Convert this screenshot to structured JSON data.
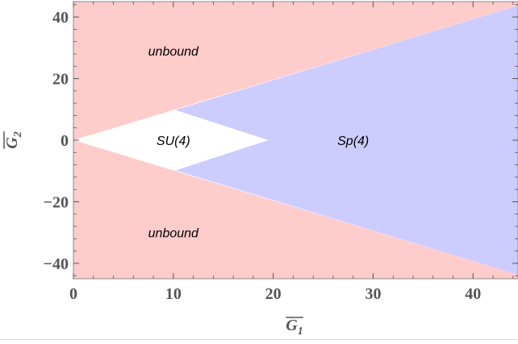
{
  "chart_data": {
    "type": "area",
    "title": "",
    "xlabel": {
      "base": "G",
      "sub": "1",
      "overline": true
    },
    "ylabel": {
      "base": "G",
      "sub": "2",
      "overline": true
    },
    "xlim": [
      0,
      44.5
    ],
    "ylim": [
      -45,
      45
    ],
    "x_ticks": [
      0,
      10,
      20,
      30,
      40
    ],
    "y_ticks": [
      -40,
      -20,
      0,
      20,
      40
    ],
    "x_tick_labels": [
      "0",
      "10",
      "20",
      "30",
      "40"
    ],
    "y_tick_labels": [
      "−40",
      "−20",
      "0",
      "20",
      "40"
    ],
    "grid": false,
    "regions": [
      {
        "key": "unbound-upper",
        "color": "#ffcccc",
        "polygon": [
          [
            0,
            0
          ],
          [
            0,
            45
          ],
          [
            44.5,
            45
          ],
          [
            44.5,
            43.7
          ]
        ]
      },
      {
        "key": "unbound-lower",
        "color": "#ffcccc",
        "polygon": [
          [
            0,
            0
          ],
          [
            44.5,
            -43.7
          ],
          [
            44.5,
            -45
          ],
          [
            0,
            -45
          ]
        ]
      },
      {
        "key": "sp4",
        "color": "#ccccff",
        "polygon": [
          [
            10.2,
            9.8
          ],
          [
            44.5,
            43.7
          ],
          [
            44.5,
            -43.7
          ],
          [
            10.2,
            -9.8
          ],
          [
            19.5,
            0
          ]
        ]
      },
      {
        "key": "su4",
        "color": "#ffffff",
        "polygon": [
          [
            0,
            0
          ],
          [
            10.2,
            9.8
          ],
          [
            19.5,
            0
          ],
          [
            10.2,
            -9.8
          ]
        ]
      }
    ],
    "labels": [
      {
        "key": "unbound-upper",
        "text": "unbound",
        "x": 10,
        "y": 29,
        "italic": true
      },
      {
        "key": "su4",
        "text": "SU(4)",
        "x": 10,
        "y": 0,
        "italic": true
      },
      {
        "key": "sp4",
        "text": "Sp(4)",
        "x": 28,
        "y": 0,
        "italic": true
      },
      {
        "key": "unbound-lower",
        "text": "unbound",
        "x": 10,
        "y": -30,
        "italic": true
      }
    ]
  },
  "colors": {
    "unbound": "#ffcccc",
    "sp4": "#ccccff",
    "su4": "#ffffff",
    "axis": "#555555",
    "frame": "#888888"
  }
}
